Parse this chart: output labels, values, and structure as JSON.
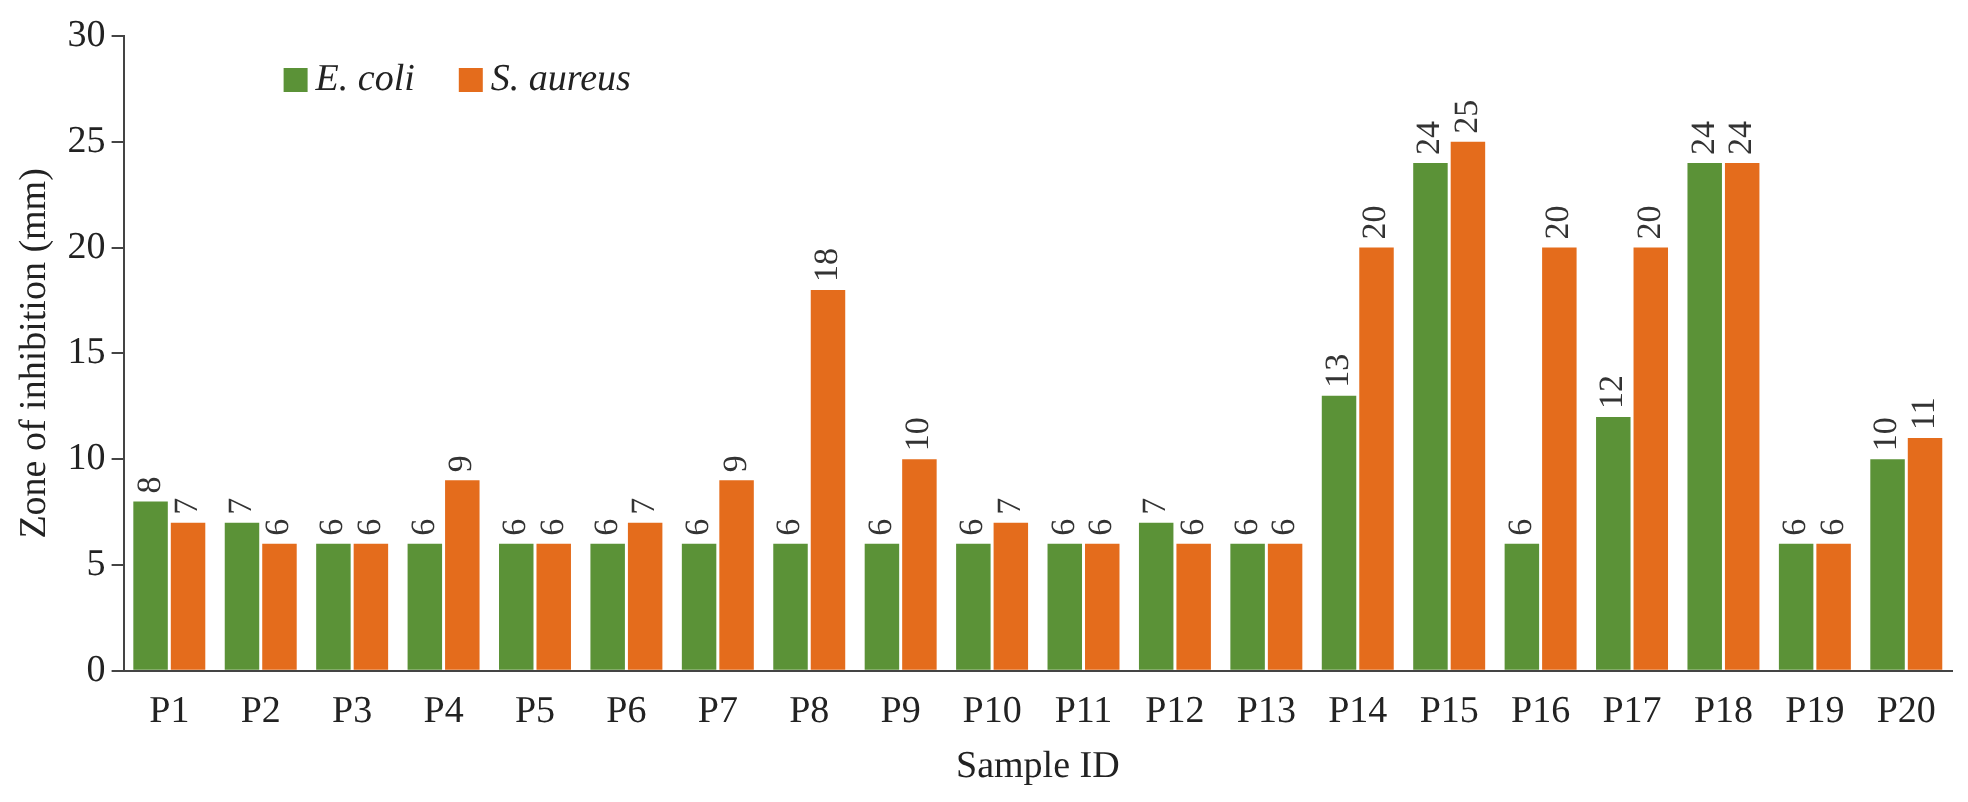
{
  "chart_data": {
    "type": "bar",
    "xlabel": "Sample ID",
    "ylabel": "Zone of inhibition (mm)",
    "categories": [
      "P1",
      "P2",
      "P3",
      "P4",
      "P5",
      "P6",
      "P7",
      "P8",
      "P9",
      "P10",
      "P11",
      "P12",
      "P13",
      "P14",
      "P15",
      "P16",
      "P17",
      "P18",
      "P19",
      "P20"
    ],
    "series": [
      {
        "name": "E. coli",
        "color": "#5b9237",
        "values": [
          8,
          7,
          6,
          6,
          6,
          6,
          6,
          6,
          6,
          6,
          6,
          7,
          6,
          13,
          24,
          6,
          12,
          24,
          6,
          10
        ]
      },
      {
        "name": "S. aureus",
        "color": "#e46c1c",
        "values": [
          7,
          6,
          6,
          9,
          6,
          7,
          9,
          18,
          10,
          7,
          6,
          6,
          6,
          20,
          25,
          20,
          20,
          24,
          6,
          11
        ]
      }
    ],
    "ylim": [
      0,
      30
    ],
    "yticks": [
      0,
      5,
      10,
      15,
      20,
      25,
      30
    ],
    "grid": false,
    "legend": "top left",
    "data_labels": true
  }
}
